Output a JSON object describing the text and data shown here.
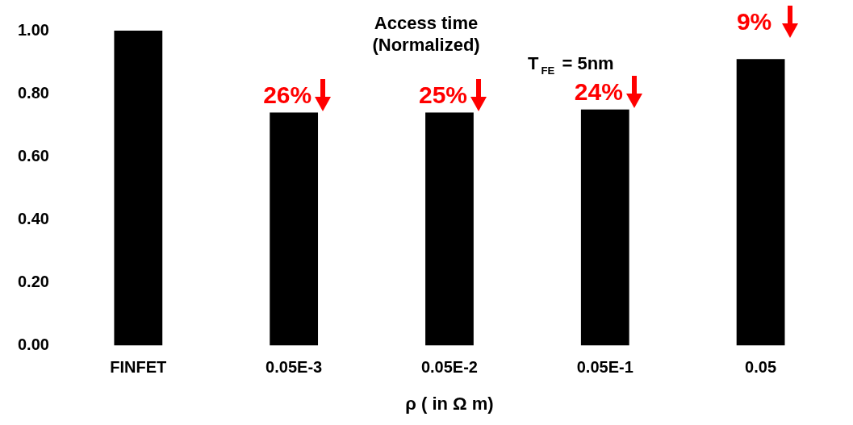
{
  "chart_data": {
    "type": "bar",
    "title": "Access time (Normalized)",
    "xlabel": "ρ ( in Ω m)",
    "categories": [
      "FINFET",
      "0.05E-3",
      "0.05E-2",
      "0.05E-1",
      "0.05"
    ],
    "values": [
      1.0,
      0.74,
      0.74,
      0.75,
      0.91
    ],
    "color": "#000000",
    "ylim": [
      0,
      1
    ],
    "yticks": [
      {
        "value": 0,
        "label": "0.00"
      },
      {
        "value": 0.2,
        "label": "0.20"
      },
      {
        "value": 0.4,
        "label": "0.40"
      },
      {
        "value": 0.6,
        "label": "0.60"
      },
      {
        "value": 0.8,
        "label": "0.80"
      },
      {
        "value": 1,
        "label": "1.00"
      }
    ],
    "grid": false,
    "legend": false,
    "annotations": [
      {
        "text": "26%",
        "x": "0.05E-3",
        "y": 0.74
      },
      {
        "text": "25%",
        "x": "0.05E-2",
        "y": 0.74
      },
      {
        "text": "24%",
        "x": "0.05E-1",
        "y": 0.75
      },
      {
        "text": "9%",
        "x": "0.05",
        "y": 0.91
      },
      "T$_{FE}$ = 5nm"
    ]
  }
}
